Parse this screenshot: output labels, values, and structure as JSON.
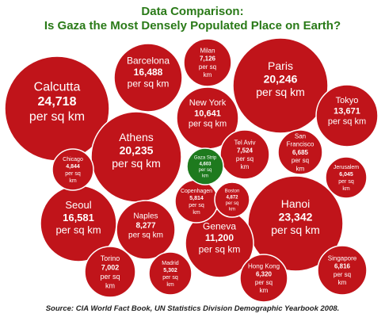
{
  "title_line1": "Data Comparison:",
  "title_line2": "Is Gaza the Most Densely Populated Place on Earth?",
  "source": "Source: CIA World Fact Book, UN Statistics Division Demographic Yearbook 2008.",
  "unit_line1": "per sq",
  "unit_line2": "km",
  "colors": {
    "bubble": "#c0141a",
    "bubble_stroke": "#ffffff",
    "highlight": "#1e7a1e",
    "title": "#2a7a18"
  },
  "chart_data": {
    "type": "bubble",
    "title": "Data Comparison: Is Gaza the Most Densely Populated Place on Earth?",
    "unit": "per sq km",
    "cities": [
      {
        "name": "Calcutta",
        "value": "24,718",
        "density": 24718
      },
      {
        "name": "Hanoi",
        "value": "23,342",
        "density": 23342
      },
      {
        "name": "Paris",
        "value": "20,246",
        "density": 20246
      },
      {
        "name": "Athens",
        "value": "20,235",
        "density": 20235
      },
      {
        "name": "Barcelona",
        "value": "16,488",
        "density": 16488
      },
      {
        "name": "Seoul",
        "value": "16,581",
        "density": 16581
      },
      {
        "name": "Tokyo",
        "value": "13,671",
        "density": 13671
      },
      {
        "name": "Geneva",
        "value": "11,200",
        "density": 11200
      },
      {
        "name": "New York",
        "value": "10,641",
        "density": 10641
      },
      {
        "name": "Naples",
        "value": "8,277",
        "density": 8277
      },
      {
        "name": "Tel Aviv",
        "value": "7,524",
        "density": 7524
      },
      {
        "name": "Milan",
        "value": "7,126",
        "density": 7126
      },
      {
        "name": "Torino",
        "value": "7,002",
        "density": 7002
      },
      {
        "name": "Singapore",
        "value": "6,816",
        "density": 6816
      },
      {
        "name": "San Francisco",
        "value": "6,685",
        "density": 6685
      },
      {
        "name": "Hong Kong",
        "value": "6,320",
        "density": 6320
      },
      {
        "name": "Jerusalem",
        "value": "6,045",
        "density": 6045
      },
      {
        "name": "Copenhagen",
        "value": "5,814",
        "density": 5814
      },
      {
        "name": "Madrid",
        "value": "5,302",
        "density": 5302
      },
      {
        "name": "Boston",
        "value": "4,872",
        "density": 4872
      },
      {
        "name": "Chicago",
        "value": "4,844",
        "density": 4844
      },
      {
        "name": "Gaza Strip",
        "value": "4,603",
        "density": 4603,
        "highlight": true
      }
    ]
  }
}
